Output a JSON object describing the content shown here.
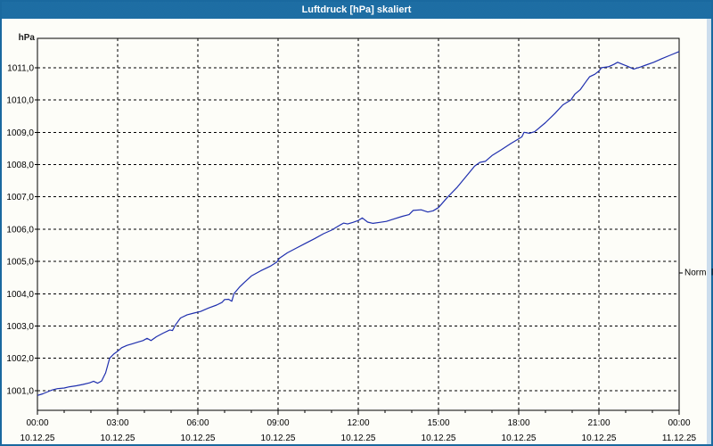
{
  "window": {
    "title": "Luftdruck [hPa] skaliert"
  },
  "colors": {
    "titlebar": "#1c6ba4",
    "window_border": "#1a699f",
    "inner_edge": "#ccdded",
    "line": "#1f2fae",
    "grid": "#000000"
  },
  "chart_data": {
    "type": "line",
    "title": "Luftdruck [hPa] skaliert",
    "grid": {
      "style": "dashed",
      "color": "#000000"
    },
    "legend_position": "none",
    "y_axis": {
      "label": "hPa",
      "range": [
        1000.39,
        1011.91
      ],
      "ticks": [
        {
          "value": 1011,
          "label": "1011,0"
        },
        {
          "value": 1010,
          "label": "1010,0"
        },
        {
          "value": 1009,
          "label": "1009,0"
        },
        {
          "value": 1008,
          "label": "1008,0"
        },
        {
          "value": 1007,
          "label": "1007,0"
        },
        {
          "value": 1006,
          "label": "1006,0"
        },
        {
          "value": 1005,
          "label": "1005,0"
        },
        {
          "value": 1004,
          "label": "1004,0"
        },
        {
          "value": 1003,
          "label": "1003,0"
        },
        {
          "value": 1002,
          "label": "1002,0"
        },
        {
          "value": 1001,
          "label": "1001,0"
        }
      ]
    },
    "x_axis": {
      "range_hours": [
        0,
        24
      ],
      "minor_tick_step_hours": 1,
      "grid_hours": [
        3,
        6,
        9,
        12,
        15,
        18,
        21
      ],
      "major_ticks": [
        {
          "hour": 0,
          "time": "00:00",
          "date": "10.12.25"
        },
        {
          "hour": 3,
          "time": "03:00",
          "date": "10.12.25"
        },
        {
          "hour": 6,
          "time": "06:00",
          "date": "10.12.25"
        },
        {
          "hour": 9,
          "time": "09:00",
          "date": "10.12.25"
        },
        {
          "hour": 12,
          "time": "12:00",
          "date": "10.12.25"
        },
        {
          "hour": 15,
          "time": "15:00",
          "date": "10.12.25"
        },
        {
          "hour": 18,
          "time": "18:00",
          "date": "10.12.25"
        },
        {
          "hour": 21,
          "time": "21:00",
          "date": "10.12.25"
        },
        {
          "hour": 24,
          "time": "00:00",
          "date": "11.12.25"
        }
      ]
    },
    "normal_marker": {
      "label": "Normal",
      "value": 1004.65
    },
    "series": [
      {
        "name": "Luftdruck",
        "color": "#1f2fae",
        "points": [
          [
            0,
            1000.85
          ],
          [
            0.2,
            1000.9
          ],
          [
            0.4,
            1000.97
          ],
          [
            0.55,
            1001.02
          ],
          [
            0.75,
            1001.06
          ],
          [
            1,
            1001.08
          ],
          [
            1.2,
            1001.12
          ],
          [
            1.45,
            1001.15
          ],
          [
            1.7,
            1001.19
          ],
          [
            1.95,
            1001.24
          ],
          [
            2.1,
            1001.29
          ],
          [
            2.25,
            1001.23
          ],
          [
            2.4,
            1001.3
          ],
          [
            2.55,
            1001.55
          ],
          [
            2.7,
            1002.0
          ],
          [
            2.85,
            1002.13
          ],
          [
            3,
            1002.22
          ],
          [
            3.15,
            1002.33
          ],
          [
            3.35,
            1002.4
          ],
          [
            3.55,
            1002.45
          ],
          [
            3.75,
            1002.5
          ],
          [
            3.95,
            1002.55
          ],
          [
            4.1,
            1002.62
          ],
          [
            4.25,
            1002.55
          ],
          [
            4.45,
            1002.67
          ],
          [
            4.7,
            1002.78
          ],
          [
            4.95,
            1002.88
          ],
          [
            5.05,
            1002.86
          ],
          [
            5.15,
            1003.02
          ],
          [
            5.35,
            1003.25
          ],
          [
            5.6,
            1003.35
          ],
          [
            5.85,
            1003.4
          ],
          [
            6.1,
            1003.45
          ],
          [
            6.4,
            1003.56
          ],
          [
            6.7,
            1003.65
          ],
          [
            6.9,
            1003.73
          ],
          [
            7.0,
            1003.82
          ],
          [
            7.15,
            1003.83
          ],
          [
            7.27,
            1003.77
          ],
          [
            7.35,
            1004.0
          ],
          [
            7.55,
            1004.2
          ],
          [
            7.75,
            1004.36
          ],
          [
            8,
            1004.55
          ],
          [
            8.35,
            1004.71
          ],
          [
            8.7,
            1004.85
          ],
          [
            8.95,
            1004.98
          ],
          [
            9.05,
            1005.1
          ],
          [
            9.35,
            1005.27
          ],
          [
            9.7,
            1005.42
          ],
          [
            10,
            1005.55
          ],
          [
            10.35,
            1005.7
          ],
          [
            10.7,
            1005.86
          ],
          [
            11,
            1005.97
          ],
          [
            11.3,
            1006.12
          ],
          [
            11.45,
            1006.19
          ],
          [
            11.6,
            1006.16
          ],
          [
            11.8,
            1006.21
          ],
          [
            12,
            1006.27
          ],
          [
            12.15,
            1006.35
          ],
          [
            12.35,
            1006.22
          ],
          [
            12.55,
            1006.18
          ],
          [
            12.8,
            1006.21
          ],
          [
            13.05,
            1006.24
          ],
          [
            13.35,
            1006.32
          ],
          [
            13.65,
            1006.4
          ],
          [
            13.9,
            1006.45
          ],
          [
            14.05,
            1006.58
          ],
          [
            14.35,
            1006.6
          ],
          [
            14.6,
            1006.53
          ],
          [
            14.8,
            1006.57
          ],
          [
            15,
            1006.67
          ],
          [
            15.35,
            1007.0
          ],
          [
            15.7,
            1007.3
          ],
          [
            16,
            1007.6
          ],
          [
            16.35,
            1007.95
          ],
          [
            16.55,
            1008.07
          ],
          [
            16.75,
            1008.1
          ],
          [
            17,
            1008.28
          ],
          [
            17.35,
            1008.46
          ],
          [
            17.7,
            1008.65
          ],
          [
            18,
            1008.8
          ],
          [
            18.12,
            1008.86
          ],
          [
            18.2,
            1009.0
          ],
          [
            18.4,
            1008.97
          ],
          [
            18.6,
            1009.02
          ],
          [
            19,
            1009.3
          ],
          [
            19.35,
            1009.58
          ],
          [
            19.65,
            1009.85
          ],
          [
            19.95,
            1010.0
          ],
          [
            20.1,
            1010.18
          ],
          [
            20.3,
            1010.32
          ],
          [
            20.5,
            1010.55
          ],
          [
            20.65,
            1010.72
          ],
          [
            20.85,
            1010.8
          ],
          [
            21,
            1010.9
          ],
          [
            21.1,
            1011.0
          ],
          [
            21.35,
            1011.03
          ],
          [
            21.55,
            1011.1
          ],
          [
            21.7,
            1011.17
          ],
          [
            21.9,
            1011.1
          ],
          [
            22.05,
            1011.05
          ],
          [
            22.3,
            1010.96
          ],
          [
            22.55,
            1011.02
          ],
          [
            22.75,
            1011.08
          ],
          [
            23.05,
            1011.17
          ],
          [
            23.35,
            1011.28
          ],
          [
            23.7,
            1011.4
          ],
          [
            24,
            1011.5
          ]
        ]
      }
    ]
  }
}
